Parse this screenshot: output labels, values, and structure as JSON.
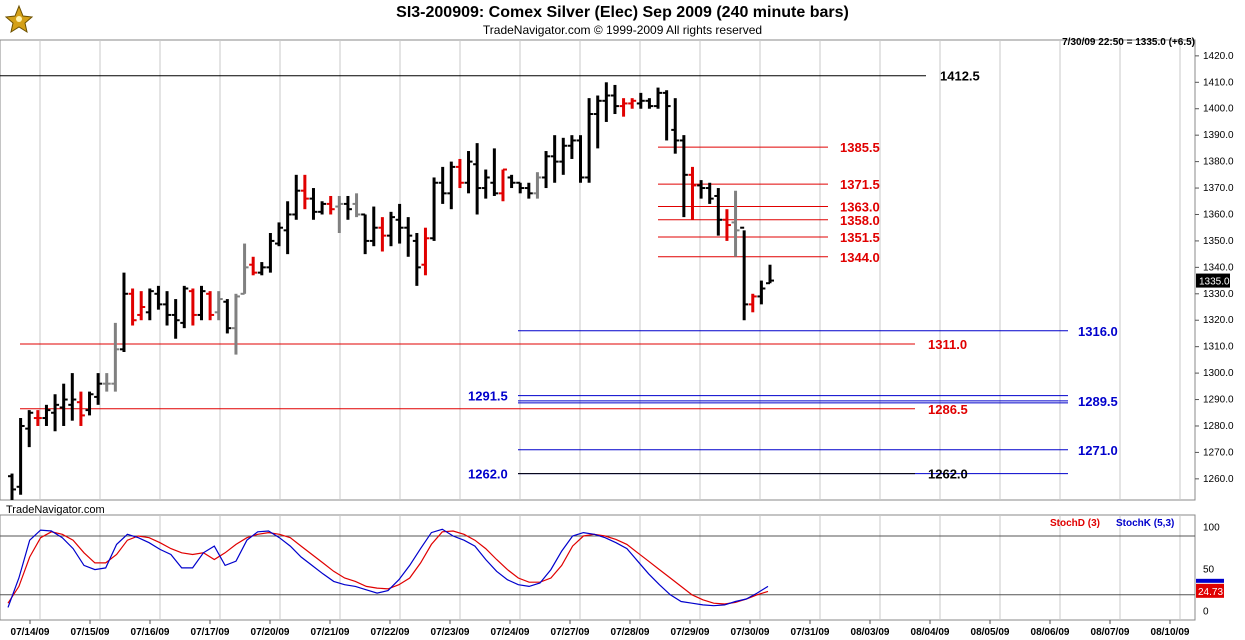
{
  "title": "SI3-200909:  Comex Silver (Elec) Sep 2009  (240 minute bars)",
  "subtitle": "TradeNavigator.com © 1999-2009 All rights reserved",
  "status": "7/30/09 22:50 = 1335.0 (+6.5)",
  "watermark": "TradeNavigator.com",
  "colors": {
    "up": "#000000",
    "down": "#e00000",
    "neutral": "#808080",
    "blue": "#0000cc",
    "red": "#e00000",
    "black": "#000000",
    "grid": "#c8c8c8",
    "stochD": "#e00000",
    "stochK": "#0000cc"
  },
  "chart_data": [
    {
      "type": "ohlc",
      "ylim": [
        1252,
        1426
      ],
      "yticks": [
        "1260.0",
        "1270.0",
        "1280.0",
        "1290.0",
        "1300.0",
        "1310.0",
        "1320.0",
        "1330.0",
        "1340.0",
        "1350.0",
        "1360.0",
        "1370.0",
        "1380.0",
        "1390.0",
        "1400.0",
        "1410.0",
        "1420.0"
      ],
      "last_price": "1335.0",
      "xticks": [
        "07/14/09",
        "07/15/09",
        "07/16/09",
        "07/17/09",
        "07/20/09",
        "07/21/09",
        "07/22/09",
        "07/23/09",
        "07/24/09",
        "07/27/09",
        "07/28/09",
        "07/29/09",
        "07/30/09",
        "07/31/09",
        "08/03/09",
        "08/04/09",
        "08/05/09",
        "08/06/09",
        "08/07/09",
        "08/10/09"
      ],
      "bars": [
        [
          1261,
          1262,
          1252,
          1256,
          "up"
        ],
        [
          1257,
          1283,
          1254,
          1280,
          "up"
        ],
        [
          1279,
          1286,
          1272,
          1285,
          "up"
        ],
        [
          1283,
          1286,
          1280,
          1283,
          "down"
        ],
        [
          1283,
          1288,
          1280,
          1286,
          "up"
        ],
        [
          1285,
          1292,
          1278,
          1288,
          "up"
        ],
        [
          1287,
          1296,
          1280,
          1290,
          "up"
        ],
        [
          1288,
          1300,
          1282,
          1290,
          "up"
        ],
        [
          1289,
          1293,
          1280,
          1284,
          "down"
        ],
        [
          1286,
          1293,
          1284,
          1292,
          "up"
        ],
        [
          1291,
          1300,
          1288,
          1296,
          "up"
        ],
        [
          1296,
          1300,
          1293,
          1296,
          "neutral"
        ],
        [
          1296,
          1319,
          1293,
          1309,
          "neutral"
        ],
        [
          1309,
          1338,
          1308,
          1330,
          "up"
        ],
        [
          1330,
          1332,
          1318,
          1320,
          "down"
        ],
        [
          1322,
          1331,
          1320,
          1325,
          "down"
        ],
        [
          1323,
          1332,
          1320,
          1331,
          "up"
        ],
        [
          1330,
          1333,
          1324,
          1326,
          "up"
        ],
        [
          1326,
          1331,
          1318,
          1322,
          "up"
        ],
        [
          1322,
          1328,
          1313,
          1320,
          "up"
        ],
        [
          1319,
          1333,
          1317,
          1332,
          "up"
        ],
        [
          1331,
          1332,
          1318,
          1322,
          "down"
        ],
        [
          1322,
          1333,
          1320,
          1331,
          "up"
        ],
        [
          1330,
          1331,
          1320,
          1322,
          "down"
        ],
        [
          1323,
          1331,
          1320,
          1328,
          "neutral"
        ],
        [
          1327,
          1328,
          1315,
          1317,
          "up"
        ],
        [
          1317,
          1330,
          1307,
          1329,
          "neutral"
        ],
        [
          1330,
          1349,
          1330,
          1340,
          "neutral"
        ],
        [
          1341,
          1344,
          1337,
          1338,
          "down"
        ],
        [
          1338,
          1342,
          1337,
          1340,
          "up"
        ],
        [
          1340,
          1353,
          1338,
          1350,
          "up"
        ],
        [
          1349,
          1357,
          1348,
          1355,
          "up"
        ],
        [
          1354,
          1365,
          1345,
          1360,
          "up"
        ],
        [
          1360,
          1375,
          1358,
          1369,
          "up"
        ],
        [
          1369,
          1375,
          1362,
          1366,
          "down"
        ],
        [
          1366,
          1370,
          1358,
          1361,
          "up"
        ],
        [
          1361,
          1365,
          1360,
          1364,
          "up"
        ],
        [
          1364,
          1367,
          1360,
          1362,
          "down"
        ],
        [
          1363,
          1367,
          1353,
          1364,
          "neutral"
        ],
        [
          1364,
          1367,
          1358,
          1362,
          "up"
        ],
        [
          1364,
          1368,
          1359,
          1360,
          "neutral"
        ],
        [
          1360,
          1360,
          1345,
          1350,
          "up"
        ],
        [
          1350,
          1363,
          1348,
          1355,
          "up"
        ],
        [
          1355,
          1359,
          1346,
          1352,
          "down"
        ],
        [
          1352,
          1361,
          1348,
          1359,
          "up"
        ],
        [
          1358,
          1364,
          1349,
          1355,
          "up"
        ],
        [
          1355,
          1359,
          1344,
          1352,
          "up"
        ],
        [
          1350,
          1353,
          1333,
          1340,
          "up"
        ],
        [
          1341,
          1355,
          1337,
          1351,
          "down"
        ],
        [
          1351,
          1374,
          1350,
          1372,
          "up"
        ],
        [
          1372,
          1378,
          1364,
          1368,
          "up"
        ],
        [
          1368,
          1380,
          1362,
          1378,
          "up"
        ],
        [
          1378,
          1381,
          1370,
          1372,
          "down"
        ],
        [
          1372,
          1384,
          1368,
          1380,
          "up"
        ],
        [
          1379,
          1387,
          1360,
          1370,
          "up"
        ],
        [
          1370,
          1377,
          1366,
          1374,
          "up"
        ],
        [
          1372,
          1385,
          1367,
          1368,
          "up"
        ],
        [
          1368,
          1377,
          1365,
          1377,
          "down"
        ],
        [
          1374,
          1375,
          1370,
          1372,
          "up"
        ],
        [
          1372,
          1372,
          1368,
          1370,
          "up"
        ],
        [
          1370,
          1372,
          1366,
          1368,
          "up"
        ],
        [
          1368,
          1376,
          1366,
          1374,
          "neutral"
        ],
        [
          1374,
          1384,
          1370,
          1382,
          "up"
        ],
        [
          1382,
          1390,
          1372,
          1380,
          "up"
        ],
        [
          1380,
          1389,
          1375,
          1386,
          "up"
        ],
        [
          1386,
          1390,
          1381,
          1388,
          "up"
        ],
        [
          1388,
          1390,
          1372,
          1374,
          "up"
        ],
        [
          1374,
          1404,
          1372,
          1398,
          "up"
        ],
        [
          1398,
          1405,
          1385,
          1403,
          "up"
        ],
        [
          1403,
          1410,
          1395,
          1405,
          "up"
        ],
        [
          1405,
          1409,
          1398,
          1401,
          "up"
        ],
        [
          1401,
          1404,
          1397,
          1402,
          "down"
        ],
        [
          1402,
          1404,
          1400,
          1403,
          "down"
        ],
        [
          1402,
          1406,
          1400,
          1403,
          "up"
        ],
        [
          1403,
          1404,
          1400,
          1401,
          "up"
        ],
        [
          1401,
          1408,
          1400,
          1406,
          "up"
        ],
        [
          1406,
          1407,
          1388,
          1401,
          "up"
        ],
        [
          1392,
          1404,
          1383,
          1388,
          "up"
        ],
        [
          1388,
          1390,
          1359,
          1375,
          "up"
        ],
        [
          1375,
          1378,
          1358,
          1371,
          "down"
        ],
        [
          1371,
          1373,
          1366,
          1370,
          "up"
        ],
        [
          1370,
          1372,
          1364,
          1366,
          "up"
        ],
        [
          1367,
          1370,
          1352,
          1358,
          "up"
        ],
        [
          1358,
          1362,
          1350,
          1356,
          "down"
        ],
        [
          1357,
          1369,
          1344,
          1354,
          "neutral"
        ],
        [
          1355,
          1354,
          1320,
          1326,
          "up"
        ],
        [
          1326,
          1330,
          1323,
          1329,
          "down"
        ],
        [
          1329,
          1335,
          1326,
          1332,
          "up"
        ],
        [
          1334,
          1341,
          1334,
          1335,
          "up"
        ]
      ],
      "levels": [
        {
          "label": "1412.5",
          "value": 1412.5,
          "color": "black"
        },
        {
          "label": "1385.5",
          "value": 1385.5,
          "color": "red"
        },
        {
          "label": "1371.5",
          "value": 1371.5,
          "color": "red"
        },
        {
          "label": "1363.0",
          "value": 1363.0,
          "color": "red"
        },
        {
          "label": "1358.0",
          "value": 1358.0,
          "color": "red"
        },
        {
          "label": "1351.5",
          "value": 1351.5,
          "color": "red"
        },
        {
          "label": "1344.0",
          "value": 1344.0,
          "color": "red"
        },
        {
          "label": "1316.0",
          "value": 1316.0,
          "color": "blue"
        },
        {
          "label": "1311.0",
          "value": 1311.0,
          "color": "red"
        },
        {
          "label": "1291.5",
          "value": 1291.5,
          "color": "blue"
        },
        {
          "label": "1289.5",
          "value": 1289.5,
          "color": "blue"
        },
        {
          "label": "1286.5",
          "value": 1286.5,
          "color": "red"
        },
        {
          "label": "1271.0",
          "value": 1271.0,
          "color": "blue"
        },
        {
          "label": "1262.0",
          "value": 1262.0,
          "color": "blue"
        },
        {
          "label": "1262.0",
          "value": 1262.0,
          "color": "black"
        }
      ]
    },
    {
      "type": "line",
      "ylim": [
        -10,
        115
      ],
      "yticks": [
        "100",
        "50",
        "0"
      ],
      "bands": [
        90,
        20
      ],
      "last_value": "24.73",
      "series": [
        {
          "name": "StochD (3)",
          "color": "red",
          "values": [
            10,
            30,
            65,
            88,
            95,
            92,
            85,
            70,
            58,
            58,
            68,
            85,
            90,
            88,
            82,
            75,
            70,
            68,
            70,
            62,
            70,
            80,
            88,
            92,
            94,
            92,
            88,
            78,
            68,
            58,
            48,
            40,
            36,
            30,
            28,
            27,
            32,
            40,
            58,
            80,
            95,
            96,
            92,
            85,
            75,
            62,
            50,
            40,
            35,
            35,
            40,
            55,
            78,
            90,
            92,
            90,
            86,
            80,
            70,
            60,
            50,
            40,
            30,
            20,
            14,
            10,
            9,
            11,
            15,
            20,
            24
          ]
        },
        {
          "name": "StochK (5,3)",
          "color": "blue",
          "values": [
            5,
            40,
            85,
            97,
            96,
            88,
            75,
            55,
            50,
            52,
            80,
            92,
            88,
            82,
            74,
            68,
            52,
            52,
            70,
            78,
            55,
            60,
            85,
            95,
            96,
            88,
            78,
            65,
            55,
            45,
            36,
            32,
            30,
            26,
            22,
            25,
            38,
            55,
            75,
            94,
            98,
            90,
            85,
            78,
            62,
            48,
            38,
            32,
            30,
            34,
            50,
            72,
            90,
            94,
            92,
            88,
            82,
            75,
            60,
            45,
            32,
            20,
            12,
            10,
            8,
            7,
            8,
            12,
            15,
            22,
            30
          ]
        }
      ]
    }
  ]
}
